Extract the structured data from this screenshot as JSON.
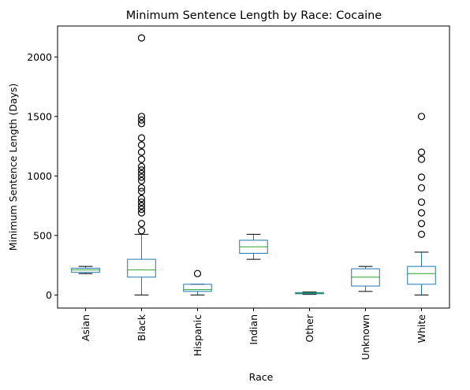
{
  "chart_data": {
    "type": "box",
    "title": "Minimum Sentence Length by Race: Cocaine",
    "xlabel": "Race",
    "ylabel": "Minimum Sentence Length (Days)",
    "categories": [
      "Asian",
      "Black",
      "Hispanic",
      "Indian",
      "Other",
      "Unknown",
      "White"
    ],
    "ylim": [
      -110,
      2260
    ],
    "yticks": [
      0,
      500,
      1000,
      1500,
      2000
    ],
    "grid": false,
    "legend": "none",
    "colors": {
      "box": "#1f77b4",
      "median": "#2ca02c",
      "whisker": "#1f77b4",
      "cap": "#000000",
      "flier": "#000000"
    },
    "boxes": [
      {
        "category": "Asian",
        "whisker_low": 180,
        "q1": 190,
        "median": 210,
        "q3": 225,
        "whisker_high": 240,
        "fliers": []
      },
      {
        "category": "Black",
        "whisker_low": 0,
        "q1": 150,
        "median": 210,
        "q3": 300,
        "whisker_high": 510,
        "fliers": [
          540,
          600,
          690,
          720,
          750,
          780,
          810,
          870,
          900,
          960,
          990,
          1020,
          1050,
          1080,
          1140,
          1200,
          1260,
          1320,
          1440,
          1470,
          1500,
          2160
        ]
      },
      {
        "category": "Hispanic",
        "whisker_low": 0,
        "q1": 30,
        "median": 45,
        "q3": 90,
        "whisker_high": 90,
        "fliers": [
          180
        ]
      },
      {
        "category": "Indian",
        "whisker_low": 300,
        "q1": 350,
        "median": 405,
        "q3": 460,
        "whisker_high": 510,
        "fliers": []
      },
      {
        "category": "Other",
        "whisker_low": 5,
        "q1": 10,
        "median": 15,
        "q3": 20,
        "whisker_high": 25,
        "fliers": []
      },
      {
        "category": "Unknown",
        "whisker_low": 30,
        "q1": 75,
        "median": 150,
        "q3": 220,
        "whisker_high": 240,
        "fliers": []
      },
      {
        "category": "White",
        "whisker_low": 0,
        "q1": 90,
        "median": 180,
        "q3": 240,
        "whisker_high": 360,
        "fliers": [
          510,
          600,
          690,
          780,
          900,
          990,
          1140,
          1200,
          1500
        ]
      }
    ]
  }
}
